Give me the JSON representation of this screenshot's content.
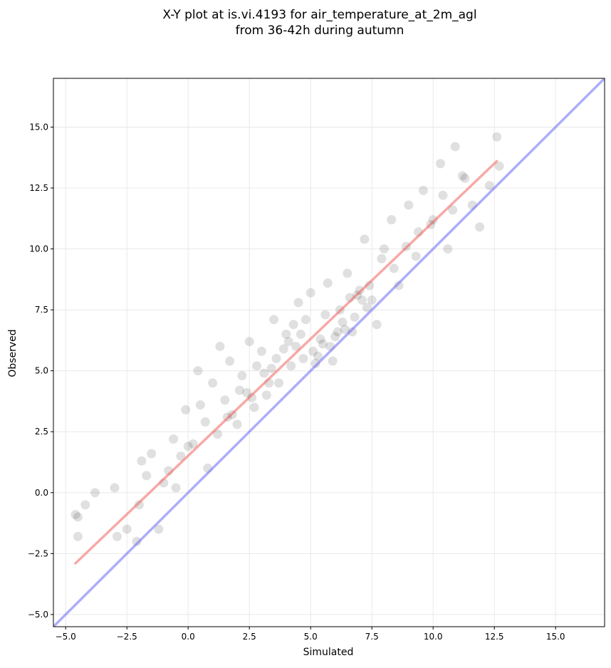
{
  "chart_data": {
    "type": "scatter",
    "title": "X-Y plot at is.vi.4193 for air_temperature_at_2m_agl",
    "subtitle": "from 36-42h during autumn",
    "xlabel": "Simulated",
    "ylabel": "Observed",
    "xlim": [
      -5.5,
      17.0
    ],
    "ylim": [
      -5.5,
      17.0
    ],
    "grid": true,
    "xticks": [
      -5.0,
      -2.5,
      0.0,
      2.5,
      5.0,
      7.5,
      10.0,
      12.5,
      15.0
    ],
    "yticks": [
      -5.0,
      -2.5,
      0.0,
      2.5,
      5.0,
      7.5,
      10.0,
      12.5,
      15.0
    ],
    "xtick_labels": [
      "−5.0",
      "−2.5",
      "0.0",
      "2.5",
      "5.0",
      "7.5",
      "10.0",
      "12.5",
      "15.0"
    ],
    "ytick_labels": [
      "−5.0",
      "−2.5",
      "0.0",
      "2.5",
      "5.0",
      "7.5",
      "10.0",
      "12.5",
      "15.0"
    ],
    "points": {
      "x": [
        -4.6,
        -4.5,
        -4.5,
        -4.2,
        -3.8,
        -3.0,
        -2.9,
        -2.5,
        -2.1,
        -2.0,
        -1.9,
        -1.7,
        -1.5,
        -1.2,
        -1.0,
        -0.6,
        -0.5,
        -0.3,
        -0.1,
        0.2,
        0.5,
        0.8,
        1.0,
        1.2,
        1.5,
        1.7,
        2.0,
        2.2,
        2.5,
        2.7,
        3.0,
        3.2,
        3.5,
        3.7,
        4.0,
        4.2,
        4.5,
        4.7,
        5.0,
        5.2,
        5.5,
        5.7,
        6.0,
        6.2,
        6.5,
        6.7,
        7.0,
        7.2,
        7.5,
        7.7,
        8.0,
        8.3,
        8.6,
        9.0,
        9.3,
        9.6,
        10.0,
        10.3,
        10.6,
        10.9,
        11.2,
        11.6,
        11.9,
        12.3,
        12.6,
        12.7,
        0.4,
        1.3,
        2.8,
        3.3,
        4.3,
        4.8,
        5.3,
        5.8,
        6.3,
        6.8,
        7.3,
        2.1,
        3.6,
        4.1,
        4.6,
        5.1,
        5.6,
        6.1,
        6.6,
        7.1,
        1.8,
        2.4,
        3.1,
        3.9,
        4.4,
        5.4,
        5.9,
        6.4,
        6.9,
        7.4,
        7.9,
        8.4,
        8.9,
        9.4,
        9.9,
        10.4,
        10.8,
        11.3,
        -0.8,
        0.0,
        0.7,
        1.6,
        2.6,
        3.4
      ],
      "y": [
        -0.9,
        -1.8,
        -1.0,
        -0.5,
        0.0,
        0.2,
        -1.8,
        -1.5,
        -2.0,
        -0.5,
        1.3,
        0.7,
        1.6,
        -1.5,
        0.4,
        2.2,
        0.2,
        1.5,
        3.4,
        2.0,
        3.6,
        1.0,
        4.5,
        2.4,
        3.8,
        5.4,
        2.8,
        4.8,
        6.2,
        3.5,
        5.8,
        4.0,
        7.1,
        4.5,
        6.5,
        5.2,
        7.8,
        5.5,
        8.2,
        5.3,
        6.1,
        8.6,
        6.4,
        7.5,
        9.0,
        6.6,
        8.3,
        10.4,
        7.9,
        6.9,
        10.0,
        11.2,
        8.5,
        11.8,
        9.7,
        12.4,
        11.2,
        13.5,
        10.0,
        14.2,
        13.0,
        11.8,
        10.9,
        12.6,
        14.6,
        13.4,
        5.0,
        6.0,
        5.2,
        4.5,
        6.9,
        7.1,
        5.6,
        6.0,
        7.0,
        7.2,
        7.6,
        4.2,
        5.5,
        6.2,
        6.5,
        5.8,
        7.3,
        6.6,
        8.0,
        7.9,
        3.2,
        4.1,
        4.9,
        5.9,
        6.0,
        6.3,
        5.4,
        6.7,
        8.1,
        8.5,
        9.6,
        9.2,
        10.1,
        10.7,
        11.0,
        12.2,
        11.6,
        12.9,
        0.9,
        1.9,
        2.9,
        3.1,
        3.9,
        5.1
      ]
    },
    "series": [
      {
        "type": "line",
        "x": [
          -4.6,
          12.6
        ],
        "y": [
          -2.9,
          13.6
        ],
        "color": "#f08080"
      },
      {
        "type": "line",
        "x": [
          -5.5,
          17.0
        ],
        "y": [
          -5.5,
          17.0
        ],
        "color": "#8080f0"
      }
    ],
    "colors": {
      "points": "#000000",
      "fit_line": "#ef5350",
      "identity_line": "#5c5cf5"
    }
  }
}
